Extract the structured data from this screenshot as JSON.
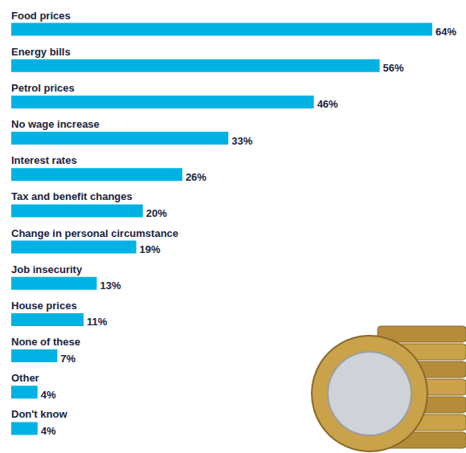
{
  "chart_data": {
    "type": "bar",
    "orientation": "horizontal",
    "categories": [
      "Food prices",
      "Energy bills",
      "Petrol prices",
      "No wage increase",
      "Interest rates",
      "Tax and benefit changes",
      "Change in personal circumstance",
      "Job insecurity",
      "House prices",
      "None of these",
      "Other",
      "Don't know"
    ],
    "values": [
      64,
      56,
      46,
      33,
      26,
      20,
      19,
      13,
      11,
      7,
      4,
      4
    ],
    "value_labels": [
      "64%",
      "56%",
      "46%",
      "33%",
      "26%",
      "20%",
      "19%",
      "13%",
      "11%",
      "7%",
      "4%",
      "4%"
    ],
    "color": "#00b2e3",
    "xlim": [
      0,
      64
    ],
    "grid": false,
    "data_labels": true,
    "tick_labels": false
  }
}
